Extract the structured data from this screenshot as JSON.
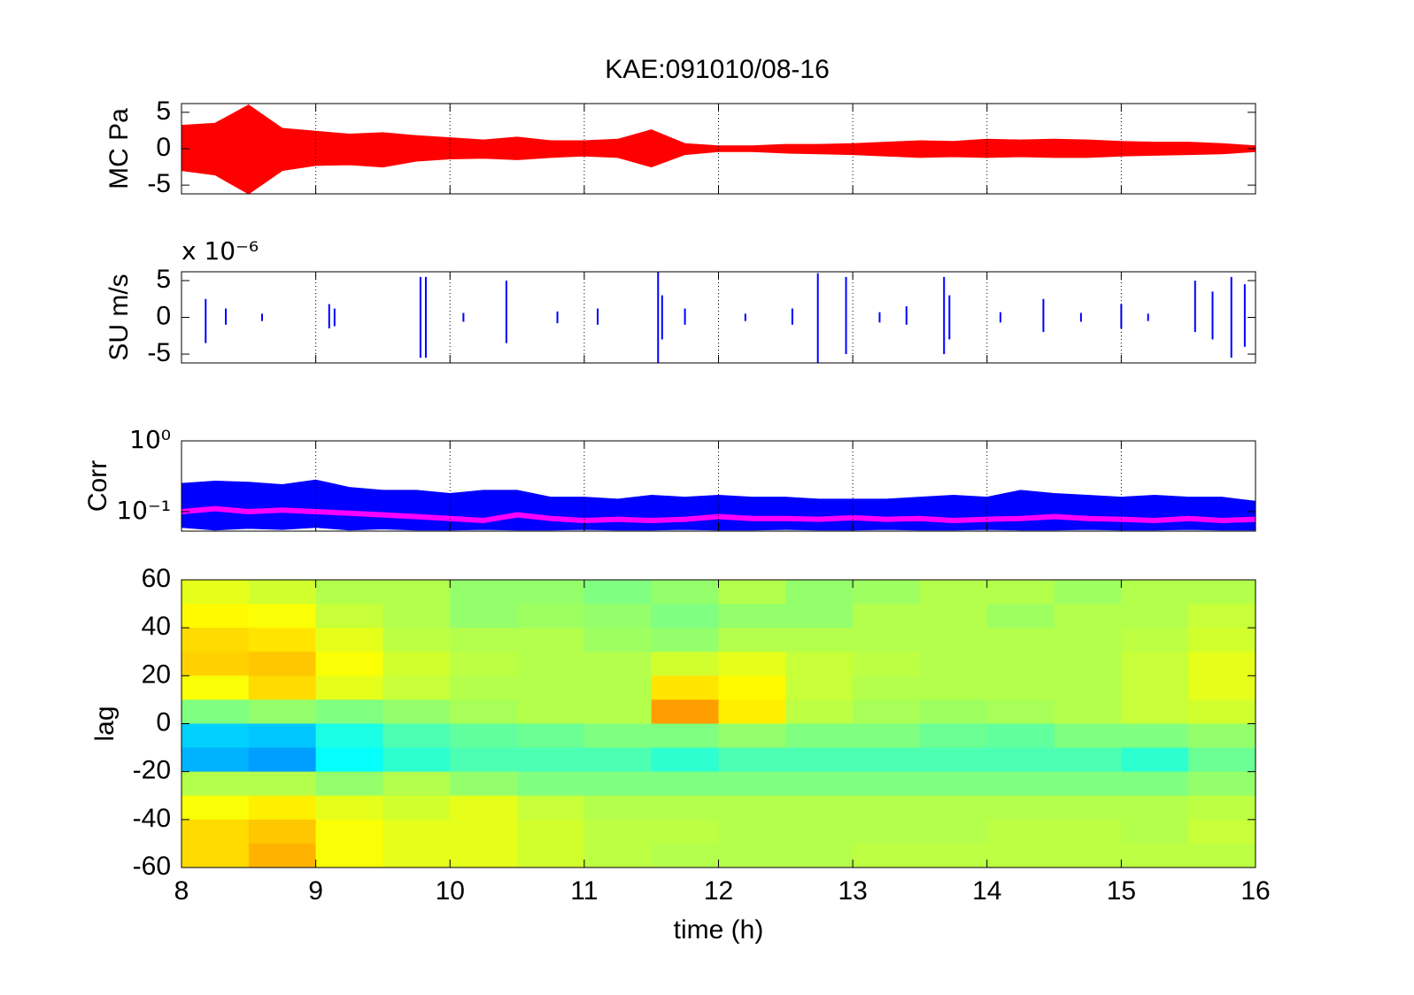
{
  "title": "KAE:091010/08-16",
  "chart_data": [
    {
      "type": "area",
      "ylabel": "MC Pa",
      "color": "#ff0000",
      "xlim": [
        8,
        16
      ],
      "xticks": [
        8,
        9,
        10,
        11,
        12,
        13,
        14,
        15,
        16
      ],
      "grid": true,
      "ylim": [
        -6.2,
        6.2
      ],
      "yticks": [
        -5,
        0,
        5
      ],
      "x": [
        8,
        8.25,
        8.5,
        8.75,
        9,
        9.25,
        9.5,
        9.75,
        10,
        10.25,
        10.5,
        10.75,
        11,
        11.25,
        11.5,
        11.75,
        12,
        12.25,
        12.5,
        12.75,
        13,
        13.25,
        13.5,
        13.75,
        14,
        14.25,
        14.5,
        14.75,
        15,
        15.25,
        15.5,
        15.75,
        16
      ],
      "high": [
        3.2,
        3.5,
        6,
        2.8,
        2.4,
        2,
        2.2,
        1.8,
        1.5,
        1.2,
        1.6,
        1.1,
        1.1,
        1.3,
        2.6,
        0.7,
        0.4,
        0.4,
        0.6,
        0.6,
        0.7,
        0.9,
        1.1,
        1,
        1.3,
        1.2,
        1.3,
        1.2,
        1,
        0.9,
        0.9,
        0.7,
        0.4
      ],
      "low": [
        -3,
        -3.6,
        -6.2,
        -3,
        -2.3,
        -2.2,
        -2.5,
        -1.7,
        -1.4,
        -1.3,
        -1.5,
        -1.2,
        -1,
        -1.2,
        -2.5,
        -0.8,
        -0.4,
        -0.4,
        -0.6,
        -0.7,
        -0.8,
        -1,
        -1.2,
        -1.1,
        -1.2,
        -1.1,
        -1.2,
        -1.2,
        -1,
        -0.9,
        -0.8,
        -0.7,
        -0.4
      ]
    },
    {
      "type": "spikes",
      "ylabel": "SU m/s",
      "multiplier": "x 10⁻⁶",
      "color": "#0000ff",
      "xlim": [
        8,
        16
      ],
      "xticks": [
        8,
        9,
        10,
        11,
        12,
        13,
        14,
        15,
        16
      ],
      "grid": true,
      "ylim": [
        -6.2,
        6.2
      ],
      "yticks": [
        -5,
        0,
        5
      ],
      "x": [
        8.18,
        8.33,
        8.6,
        9.1,
        9.14,
        9.78,
        9.82,
        10.1,
        10.42,
        10.8,
        11.1,
        11.55,
        11.58,
        11.75,
        12.2,
        12.55,
        12.74,
        12.95,
        13.2,
        13.4,
        13.68,
        13.72,
        14.1,
        14.42,
        14.7,
        15.0,
        15.2,
        15.55,
        15.68,
        15.82,
        15.92
      ],
      "high": [
        2.5,
        1.2,
        0.5,
        1.8,
        1.2,
        5.5,
        5.5,
        0.6,
        5,
        0.8,
        1.2,
        6.2,
        3,
        1.2,
        0.5,
        1.2,
        6,
        5.5,
        0.7,
        1.5,
        5.5,
        3,
        0.7,
        2.5,
        0.6,
        1.8,
        0.5,
        5,
        3.5,
        5.5,
        4.5
      ],
      "low": [
        -3.5,
        -1,
        -0.5,
        -1.5,
        -1.2,
        -5.5,
        -5.5,
        -0.6,
        -3.5,
        -0.8,
        -1,
        -6.2,
        -3,
        -1,
        -0.5,
        -1,
        -6.2,
        -5,
        -0.7,
        -1,
        -5,
        -3,
        -0.7,
        -2,
        -0.6,
        -1.5,
        -0.5,
        -2,
        -3,
        -5.5,
        -4
      ]
    },
    {
      "type": "line",
      "ylabel": "Corr",
      "log_y": true,
      "xlim": [
        8,
        16
      ],
      "xticks": [
        8,
        9,
        10,
        11,
        12,
        13,
        14,
        15,
        16
      ],
      "grid": true,
      "ylim": [
        0.053,
        1
      ],
      "yticks": [
        {
          "value": 1,
          "label": "10⁰"
        },
        {
          "value": 0.1,
          "label": "10⁻¹"
        }
      ],
      "x": [
        8,
        8.25,
        8.5,
        8.75,
        9,
        9.25,
        9.5,
        9.75,
        10,
        10.25,
        10.5,
        10.75,
        11,
        11.25,
        11.5,
        11.75,
        12,
        12.25,
        12.5,
        12.75,
        13,
        13.25,
        13.5,
        13.75,
        14,
        14.25,
        14.5,
        14.75,
        15,
        15.25,
        15.5,
        15.75,
        16
      ],
      "series": [
        {
          "color": "#0000ff",
          "high": [
            0.25,
            0.27,
            0.26,
            0.24,
            0.28,
            0.22,
            0.2,
            0.2,
            0.18,
            0.2,
            0.2,
            0.16,
            0.16,
            0.15,
            0.17,
            0.16,
            0.17,
            0.16,
            0.16,
            0.15,
            0.15,
            0.15,
            0.16,
            0.17,
            0.16,
            0.2,
            0.18,
            0.17,
            0.16,
            0.17,
            0.16,
            0.16,
            0.14
          ],
          "low": [
            0.06,
            0.055,
            0.058,
            0.056,
            0.06,
            0.055,
            0.057,
            0.055,
            0.055,
            0.056,
            0.055,
            0.055,
            0.056,
            0.055,
            0.055,
            0.056,
            0.055,
            0.055,
            0.056,
            0.055,
            0.055,
            0.056,
            0.055,
            0.055,
            0.056,
            0.055,
            0.055,
            0.056,
            0.055,
            0.055,
            0.056,
            0.055,
            0.055
          ]
        },
        {
          "color": "#ff00ff",
          "values": [
            0.1,
            0.11,
            0.1,
            0.105,
            0.1,
            0.095,
            0.09,
            0.085,
            0.08,
            0.075,
            0.09,
            0.08,
            0.075,
            0.078,
            0.075,
            0.078,
            0.085,
            0.08,
            0.08,
            0.078,
            0.082,
            0.078,
            0.08,
            0.075,
            0.078,
            0.08,
            0.085,
            0.08,
            0.078,
            0.075,
            0.08,
            0.075,
            0.078
          ]
        }
      ]
    },
    {
      "type": "heatmap",
      "ylabel": "lag",
      "xlabel": "time (h)",
      "colormap": "jet",
      "zlim": [
        0,
        1
      ],
      "xlim": [
        8,
        16
      ],
      "xticks": [
        8,
        9,
        10,
        11,
        12,
        13,
        14,
        15,
        16
      ],
      "grid": false,
      "ylim": [
        -60,
        60
      ],
      "yticks": [
        -60,
        -40,
        -20,
        0,
        20,
        40,
        60
      ],
      "x": [
        8,
        8.5,
        9,
        9.5,
        10,
        10.5,
        11,
        11.5,
        12,
        12.5,
        13,
        13.5,
        14,
        14.5,
        15,
        15.5,
        16
      ],
      "y": [
        60,
        50,
        40,
        30,
        20,
        10,
        0,
        -10,
        -20,
        -30,
        -40,
        -50,
        -60
      ],
      "z": [
        [
          0.6,
          0.58,
          0.55,
          0.55,
          0.52,
          0.52,
          0.5,
          0.52,
          0.55,
          0.52,
          0.53,
          0.55,
          0.55,
          0.53,
          0.55,
          0.55
        ],
        [
          0.63,
          0.62,
          0.57,
          0.55,
          0.52,
          0.53,
          0.52,
          0.5,
          0.52,
          0.52,
          0.55,
          0.55,
          0.53,
          0.55,
          0.55,
          0.57
        ],
        [
          0.66,
          0.65,
          0.6,
          0.56,
          0.55,
          0.55,
          0.53,
          0.52,
          0.55,
          0.55,
          0.55,
          0.55,
          0.55,
          0.55,
          0.56,
          0.58
        ],
        [
          0.67,
          0.68,
          0.62,
          0.58,
          0.56,
          0.55,
          0.55,
          0.58,
          0.6,
          0.57,
          0.56,
          0.55,
          0.55,
          0.55,
          0.57,
          0.6
        ],
        [
          0.62,
          0.66,
          0.6,
          0.57,
          0.55,
          0.55,
          0.55,
          0.65,
          0.63,
          0.57,
          0.55,
          0.55,
          0.55,
          0.55,
          0.57,
          0.6
        ],
        [
          0.5,
          0.52,
          0.5,
          0.52,
          0.54,
          0.55,
          0.55,
          0.72,
          0.64,
          0.56,
          0.54,
          0.53,
          0.54,
          0.55,
          0.57,
          0.58
        ],
        [
          0.33,
          0.32,
          0.4,
          0.45,
          0.47,
          0.48,
          0.5,
          0.5,
          0.52,
          0.5,
          0.5,
          0.48,
          0.47,
          0.5,
          0.5,
          0.52
        ],
        [
          0.3,
          0.28,
          0.38,
          0.42,
          0.45,
          0.45,
          0.45,
          0.42,
          0.45,
          0.45,
          0.45,
          0.45,
          0.45,
          0.45,
          0.42,
          0.48
        ],
        [
          0.55,
          0.55,
          0.52,
          0.55,
          0.52,
          0.5,
          0.5,
          0.5,
          0.5,
          0.5,
          0.5,
          0.5,
          0.5,
          0.5,
          0.5,
          0.52
        ],
        [
          0.62,
          0.64,
          0.6,
          0.58,
          0.6,
          0.57,
          0.55,
          0.55,
          0.55,
          0.55,
          0.55,
          0.55,
          0.55,
          0.55,
          0.55,
          0.56
        ],
        [
          0.66,
          0.68,
          0.62,
          0.6,
          0.6,
          0.58,
          0.56,
          0.56,
          0.55,
          0.55,
          0.55,
          0.55,
          0.56,
          0.56,
          0.55,
          0.57
        ],
        [
          0.66,
          0.7,
          0.62,
          0.6,
          0.6,
          0.58,
          0.56,
          0.55,
          0.55,
          0.55,
          0.56,
          0.56,
          0.56,
          0.56,
          0.56,
          0.56
        ]
      ]
    }
  ]
}
